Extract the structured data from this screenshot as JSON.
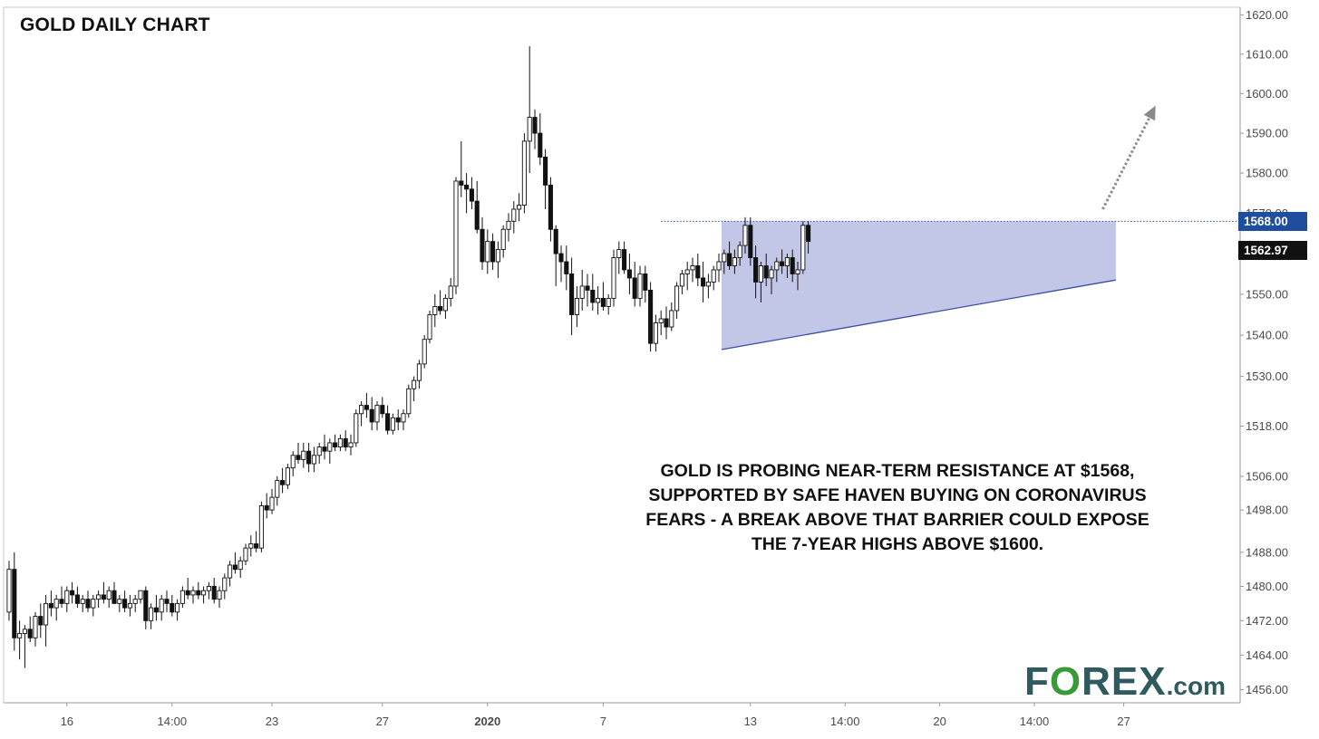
{
  "title": "GOLD DAILY CHART",
  "annotation": [
    "GOLD IS PROBING NEAR-TERM RESISTANCE AT $1568,",
    "SUPPORTED BY SAFE HAVEN BUYING ON CORONAVIRUS",
    "FEARS - A BREAK ABOVE THAT BARRIER COULD EXPOSE",
    "THE 7-YEAR HIGHS ABOVE $1600."
  ],
  "logo": {
    "text": "FOREX",
    "suffix": ".com"
  },
  "price_labels": {
    "resistance": "1568.00",
    "last": "1562.97"
  },
  "colors": {
    "resistance_tag": "#1f4e9e",
    "last_tag": "#111111",
    "triangle_fill": "#b8bde3",
    "candle_up": "#ffffff",
    "candle_down": "#111111",
    "logo": "#2f5a5e",
    "logo_o": "#3a9a3a"
  },
  "chart_data": {
    "type": "candlestick",
    "title": "GOLD DAILY CHART",
    "y_scale": "log",
    "ylim": [
      1453,
      1622
    ],
    "y_ticks": [
      1620,
      1610,
      1600,
      1590,
      1580,
      1570,
      1560,
      1550,
      1540,
      1530,
      1518,
      1506,
      1498,
      1488,
      1480,
      1472,
      1464,
      1456
    ],
    "y_tick_labels": [
      "1620.00",
      "1610.00",
      "1600.00",
      "1590.00",
      "1580.00",
      "1570.00",
      "1560.00",
      "1550.00",
      "1540.00",
      "1530.00",
      "1518.00",
      "1506.00",
      "1498.00",
      "1488.00",
      "1480.00",
      "1472.00",
      "1464.00",
      "1456.00"
    ],
    "x_ticks": [
      {
        "label": "16",
        "bar": 11,
        "bold": false
      },
      {
        "label": "14:00",
        "bar": 31,
        "bold": false
      },
      {
        "label": "23",
        "bar": 50,
        "bold": false
      },
      {
        "label": "27",
        "bar": 71,
        "bold": false
      },
      {
        "label": "2020",
        "bar": 91,
        "bold": true
      },
      {
        "label": "7",
        "bar": 113,
        "bold": false
      },
      {
        "label": "13",
        "bar": 141,
        "bold": false
      },
      {
        "label": "14:00",
        "bar": 159,
        "bold": false
      },
      {
        "label": "20",
        "bar": 177,
        "bold": false
      },
      {
        "label": "14:00",
        "bar": 195,
        "bold": false
      },
      {
        "label": "27",
        "bar": 212,
        "bold": false
      }
    ],
    "candles": [
      [
        1474,
        1486,
        1472,
        1484
      ],
      [
        1484,
        1488,
        1465,
        1468
      ],
      [
        1468,
        1472,
        1463,
        1469
      ],
      [
        1469,
        1471,
        1461,
        1470
      ],
      [
        1470,
        1473,
        1467,
        1468
      ],
      [
        1468,
        1474,
        1466,
        1473
      ],
      [
        1473,
        1476,
        1468,
        1471
      ],
      [
        1471,
        1478,
        1466,
        1476
      ],
      [
        1476,
        1479,
        1473,
        1475
      ],
      [
        1475,
        1478,
        1472,
        1477
      ],
      [
        1477,
        1480,
        1475,
        1476
      ],
      [
        1476,
        1480,
        1474,
        1479
      ],
      [
        1479,
        1481,
        1476,
        1478
      ],
      [
        1478,
        1480,
        1475,
        1476
      ],
      [
        1476,
        1478,
        1474,
        1477
      ],
      [
        1477,
        1479,
        1474,
        1475
      ],
      [
        1475,
        1478,
        1473,
        1477
      ],
      [
        1477,
        1479,
        1475,
        1478
      ],
      [
        1478,
        1481,
        1476,
        1477
      ],
      [
        1477,
        1480,
        1475,
        1479
      ],
      [
        1479,
        1481,
        1476,
        1476
      ],
      [
        1476,
        1478,
        1474,
        1477
      ],
      [
        1477,
        1479,
        1474,
        1475
      ],
      [
        1475,
        1478,
        1473,
        1476
      ],
      [
        1476,
        1478,
        1474,
        1477
      ],
      [
        1477,
        1479,
        1476,
        1479
      ],
      [
        1479,
        1480,
        1470,
        1472
      ],
      [
        1472,
        1476,
        1470,
        1475
      ],
      [
        1475,
        1478,
        1472,
        1474
      ],
      [
        1474,
        1478,
        1472,
        1477
      ],
      [
        1477,
        1479,
        1474,
        1476
      ],
      [
        1476,
        1478,
        1473,
        1474
      ],
      [
        1474,
        1477,
        1472,
        1476
      ],
      [
        1476,
        1480,
        1475,
        1479
      ],
      [
        1479,
        1482,
        1477,
        1478
      ],
      [
        1478,
        1480,
        1476,
        1479
      ],
      [
        1479,
        1481,
        1477,
        1478
      ],
      [
        1478,
        1480,
        1476,
        1479
      ],
      [
        1479,
        1481,
        1477,
        1480
      ],
      [
        1480,
        1482,
        1476,
        1477
      ],
      [
        1477,
        1480,
        1475,
        1479
      ],
      [
        1479,
        1483,
        1477,
        1482
      ],
      [
        1482,
        1486,
        1480,
        1485
      ],
      [
        1485,
        1488,
        1483,
        1484
      ],
      [
        1484,
        1487,
        1482,
        1486
      ],
      [
        1486,
        1490,
        1485,
        1489
      ],
      [
        1489,
        1492,
        1487,
        1490
      ],
      [
        1490,
        1493,
        1488,
        1489
      ],
      [
        1489,
        1500,
        1488,
        1499
      ],
      [
        1499,
        1502,
        1496,
        1498
      ],
      [
        1498,
        1503,
        1497,
        1501
      ],
      [
        1501,
        1506,
        1499,
        1505
      ],
      [
        1505,
        1508,
        1502,
        1504
      ],
      [
        1504,
        1509,
        1503,
        1508
      ],
      [
        1508,
        1512,
        1506,
        1511
      ],
      [
        1511,
        1514,
        1509,
        1510
      ],
      [
        1510,
        1514,
        1508,
        1512
      ],
      [
        1512,
        1514,
        1507,
        1509
      ],
      [
        1509,
        1513,
        1507,
        1511
      ],
      [
        1511,
        1514,
        1509,
        1513
      ],
      [
        1513,
        1516,
        1510,
        1512
      ],
      [
        1512,
        1515,
        1509,
        1514
      ],
      [
        1514,
        1516,
        1512,
        1513
      ],
      [
        1513,
        1516,
        1512,
        1515
      ],
      [
        1515,
        1517,
        1512,
        1513
      ],
      [
        1513,
        1516,
        1511,
        1514
      ],
      [
        1514,
        1522,
        1513,
        1521
      ],
      [
        1521,
        1524,
        1518,
        1523
      ],
      [
        1523,
        1526,
        1520,
        1522
      ],
      [
        1522,
        1525,
        1517,
        1519
      ],
      [
        1519,
        1524,
        1517,
        1523
      ],
      [
        1523,
        1525,
        1520,
        1521
      ],
      [
        1521,
        1523,
        1516,
        1517
      ],
      [
        1517,
        1521,
        1516,
        1520
      ],
      [
        1520,
        1522,
        1517,
        1519
      ],
      [
        1519,
        1522,
        1517,
        1521
      ],
      [
        1521,
        1528,
        1520,
        1527
      ],
      [
        1527,
        1530,
        1524,
        1529
      ],
      [
        1529,
        1534,
        1527,
        1533
      ],
      [
        1533,
        1540,
        1532,
        1539
      ],
      [
        1539,
        1546,
        1538,
        1545
      ],
      [
        1545,
        1550,
        1542,
        1547
      ],
      [
        1547,
        1551,
        1545,
        1546
      ],
      [
        1546,
        1550,
        1544,
        1549
      ],
      [
        1549,
        1554,
        1547,
        1552
      ],
      [
        1552,
        1579,
        1550,
        1578
      ],
      [
        1578,
        1588,
        1574,
        1577
      ],
      [
        1577,
        1580,
        1570,
        1576
      ],
      [
        1576,
        1579,
        1571,
        1573
      ],
      [
        1573,
        1578,
        1565,
        1566
      ],
      [
        1566,
        1569,
        1556,
        1558
      ],
      [
        1558,
        1566,
        1555,
        1563
      ],
      [
        1563,
        1565,
        1556,
        1558
      ],
      [
        1558,
        1563,
        1554,
        1561
      ],
      [
        1561,
        1567,
        1559,
        1566
      ],
      [
        1566,
        1570,
        1563,
        1568
      ],
      [
        1568,
        1573,
        1565,
        1571
      ],
      [
        1571,
        1575,
        1568,
        1572
      ],
      [
        1572,
        1590,
        1570,
        1588
      ],
      [
        1588,
        1612,
        1580,
        1594
      ],
      [
        1594,
        1596,
        1586,
        1590
      ],
      [
        1590,
        1595,
        1582,
        1584
      ],
      [
        1584,
        1586,
        1571,
        1577
      ],
      [
        1577,
        1579,
        1563,
        1566
      ],
      [
        1566,
        1567,
        1552,
        1560
      ],
      [
        1560,
        1562,
        1553,
        1558
      ],
      [
        1558,
        1562,
        1551,
        1555
      ],
      [
        1555,
        1559,
        1540,
        1545
      ],
      [
        1545,
        1552,
        1542,
        1549
      ],
      [
        1549,
        1556,
        1546,
        1552
      ],
      [
        1552,
        1555,
        1547,
        1551
      ],
      [
        1551,
        1555,
        1546,
        1548
      ],
      [
        1548,
        1552,
        1545,
        1549
      ],
      [
        1549,
        1553,
        1546,
        1547
      ],
      [
        1547,
        1550,
        1545,
        1549
      ],
      [
        1549,
        1561,
        1547,
        1559
      ],
      [
        1559,
        1563,
        1555,
        1561
      ],
      [
        1561,
        1563,
        1555,
        1556
      ],
      [
        1556,
        1560,
        1550,
        1554
      ],
      [
        1554,
        1558,
        1547,
        1549
      ],
      [
        1549,
        1557,
        1547,
        1555
      ],
      [
        1555,
        1557,
        1548,
        1551
      ],
      [
        1551,
        1553,
        1536,
        1538
      ],
      [
        1538,
        1545,
        1536,
        1543
      ],
      [
        1543,
        1546,
        1540,
        1544
      ],
      [
        1544,
        1547,
        1539,
        1542
      ],
      [
        1542,
        1548,
        1541,
        1546
      ],
      [
        1546,
        1553,
        1544,
        1552
      ],
      [
        1552,
        1556,
        1550,
        1555
      ],
      [
        1555,
        1558,
        1551,
        1556
      ],
      [
        1556,
        1559,
        1553,
        1557
      ],
      [
        1557,
        1560,
        1552,
        1554
      ],
      [
        1554,
        1558,
        1548,
        1552
      ],
      [
        1552,
        1555,
        1549,
        1553
      ],
      [
        1553,
        1557,
        1551,
        1556
      ],
      [
        1556,
        1560,
        1553,
        1558
      ],
      [
        1558,
        1561,
        1555,
        1560
      ],
      [
        1560,
        1563,
        1556,
        1557
      ],
      [
        1557,
        1561,
        1555,
        1559
      ],
      [
        1559,
        1563,
        1557,
        1562
      ],
      [
        1562,
        1569,
        1560,
        1567
      ],
      [
        1567,
        1569,
        1557,
        1559
      ],
      [
        1559,
        1562,
        1549,
        1553
      ],
      [
        1553,
        1558,
        1548,
        1557
      ],
      [
        1557,
        1560,
        1552,
        1554
      ],
      [
        1554,
        1557,
        1550,
        1556
      ],
      [
        1556,
        1559,
        1553,
        1558
      ],
      [
        1558,
        1561,
        1555,
        1557
      ],
      [
        1557,
        1560,
        1554,
        1559
      ],
      [
        1559,
        1561,
        1553,
        1555
      ],
      [
        1555,
        1558,
        1551,
        1556
      ],
      [
        1556,
        1568,
        1555,
        1567
      ],
      [
        1567,
        1568,
        1560,
        1563
      ]
    ],
    "resistance": 1568,
    "triangle": {
      "x": [
        135.5,
        210.5
      ],
      "top": 1568,
      "bottom": [
        1536.5,
        1553.5
      ]
    }
  }
}
